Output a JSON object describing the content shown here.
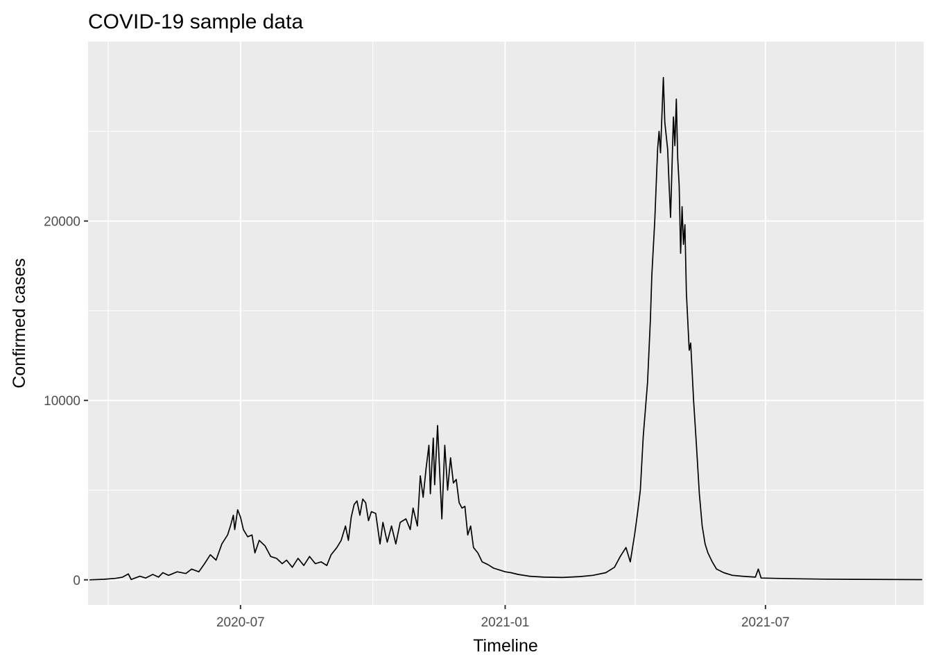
{
  "chart_data": {
    "type": "line",
    "title": "COVID-19 sample data",
    "xlabel": "Timeline",
    "ylabel": "Confirmed cases",
    "x_axis": {
      "type": "date",
      "range": [
        "2020-03-17",
        "2021-10-19"
      ],
      "ticks": [
        "2020-07-01",
        "2021-01-01",
        "2021-07-01"
      ],
      "tick_labels": [
        "2020-07",
        "2021-01",
        "2021-07"
      ]
    },
    "y_axis": {
      "range": [
        -1400,
        30000
      ],
      "ticks": [
        0,
        10000,
        20000
      ],
      "tick_labels": [
        "0",
        "10000",
        "20000"
      ]
    },
    "grid": true,
    "legend": "none",
    "series": [
      {
        "color": "#000000",
        "points": [
          [
            "2020-03-18",
            0
          ],
          [
            "2020-03-28",
            30
          ],
          [
            "2020-04-05",
            80
          ],
          [
            "2020-04-10",
            150
          ],
          [
            "2020-04-14",
            330
          ],
          [
            "2020-04-16",
            20
          ],
          [
            "2020-04-22",
            200
          ],
          [
            "2020-04-26",
            100
          ],
          [
            "2020-05-01",
            300
          ],
          [
            "2020-05-05",
            150
          ],
          [
            "2020-05-08",
            400
          ],
          [
            "2020-05-12",
            250
          ],
          [
            "2020-05-18",
            450
          ],
          [
            "2020-05-24",
            350
          ],
          [
            "2020-05-28",
            600
          ],
          [
            "2020-06-02",
            450
          ],
          [
            "2020-06-06",
            900
          ],
          [
            "2020-06-10",
            1400
          ],
          [
            "2020-06-14",
            1100
          ],
          [
            "2020-06-18",
            2000
          ],
          [
            "2020-06-22",
            2500
          ],
          [
            "2020-06-24",
            3000
          ],
          [
            "2020-06-26",
            3600
          ],
          [
            "2020-06-27",
            2800
          ],
          [
            "2020-06-29",
            3900
          ],
          [
            "2020-07-01",
            3500
          ],
          [
            "2020-07-03",
            2800
          ],
          [
            "2020-07-06",
            2400
          ],
          [
            "2020-07-09",
            2500
          ],
          [
            "2020-07-11",
            1500
          ],
          [
            "2020-07-14",
            2200
          ],
          [
            "2020-07-18",
            1900
          ],
          [
            "2020-07-22",
            1300
          ],
          [
            "2020-07-26",
            1200
          ],
          [
            "2020-07-30",
            900
          ],
          [
            "2020-08-02",
            1100
          ],
          [
            "2020-08-06",
            700
          ],
          [
            "2020-08-10",
            1200
          ],
          [
            "2020-08-14",
            800
          ],
          [
            "2020-08-18",
            1300
          ],
          [
            "2020-08-22",
            900
          ],
          [
            "2020-08-26",
            1000
          ],
          [
            "2020-08-30",
            800
          ],
          [
            "2020-09-02",
            1400
          ],
          [
            "2020-09-06",
            1800
          ],
          [
            "2020-09-09",
            2200
          ],
          [
            "2020-09-12",
            3000
          ],
          [
            "2020-09-14",
            2200
          ],
          [
            "2020-09-16",
            3500
          ],
          [
            "2020-09-18",
            4200
          ],
          [
            "2020-09-20",
            4400
          ],
          [
            "2020-09-22",
            3600
          ],
          [
            "2020-09-24",
            4500
          ],
          [
            "2020-09-26",
            4300
          ],
          [
            "2020-09-28",
            3300
          ],
          [
            "2020-09-30",
            3800
          ],
          [
            "2020-10-03",
            3700
          ],
          [
            "2020-10-06",
            2000
          ],
          [
            "2020-10-08",
            3200
          ],
          [
            "2020-10-11",
            2100
          ],
          [
            "2020-10-14",
            3000
          ],
          [
            "2020-10-17",
            2000
          ],
          [
            "2020-10-20",
            3200
          ],
          [
            "2020-10-24",
            3400
          ],
          [
            "2020-10-27",
            2800
          ],
          [
            "2020-10-29",
            4000
          ],
          [
            "2020-11-01",
            3000
          ],
          [
            "2020-11-03",
            5800
          ],
          [
            "2020-11-05",
            4600
          ],
          [
            "2020-11-07",
            6200
          ],
          [
            "2020-11-09",
            7500
          ],
          [
            "2020-11-10",
            4800
          ],
          [
            "2020-11-12",
            7900
          ],
          [
            "2020-11-13",
            5300
          ],
          [
            "2020-11-15",
            8600
          ],
          [
            "2020-11-16",
            6800
          ],
          [
            "2020-11-18",
            3400
          ],
          [
            "2020-11-20",
            7500
          ],
          [
            "2020-11-22",
            5000
          ],
          [
            "2020-11-24",
            6800
          ],
          [
            "2020-11-26",
            5400
          ],
          [
            "2020-11-28",
            5600
          ],
          [
            "2020-11-30",
            4300
          ],
          [
            "2020-12-02",
            4000
          ],
          [
            "2020-12-04",
            4100
          ],
          [
            "2020-12-06",
            2500
          ],
          [
            "2020-12-08",
            3000
          ],
          [
            "2020-12-10",
            1800
          ],
          [
            "2020-12-13",
            1500
          ],
          [
            "2020-12-16",
            1000
          ],
          [
            "2020-12-20",
            850
          ],
          [
            "2020-12-24",
            650
          ],
          [
            "2020-12-28",
            550
          ],
          [
            "2021-01-01",
            450
          ],
          [
            "2021-01-05",
            400
          ],
          [
            "2021-01-10",
            300
          ],
          [
            "2021-01-18",
            200
          ],
          [
            "2021-01-28",
            150
          ],
          [
            "2021-02-10",
            130
          ],
          [
            "2021-02-22",
            180
          ],
          [
            "2021-03-03",
            250
          ],
          [
            "2021-03-12",
            400
          ],
          [
            "2021-03-18",
            700
          ],
          [
            "2021-03-22",
            1300
          ],
          [
            "2021-03-26",
            1800
          ],
          [
            "2021-03-29",
            1000
          ],
          [
            "2021-04-01",
            2500
          ],
          [
            "2021-04-03",
            3700
          ],
          [
            "2021-04-05",
            5000
          ],
          [
            "2021-04-07",
            8000
          ],
          [
            "2021-04-10",
            11000
          ],
          [
            "2021-04-12",
            14500
          ],
          [
            "2021-04-13",
            17000
          ],
          [
            "2021-04-15",
            20000
          ],
          [
            "2021-04-17",
            24000
          ],
          [
            "2021-04-18",
            25000
          ],
          [
            "2021-04-19",
            23800
          ],
          [
            "2021-04-21",
            28000
          ],
          [
            "2021-04-22",
            25500
          ],
          [
            "2021-04-24",
            24000
          ],
          [
            "2021-04-25",
            22000
          ],
          [
            "2021-04-26",
            20200
          ],
          [
            "2021-04-28",
            25800
          ],
          [
            "2021-04-29",
            24200
          ],
          [
            "2021-04-30",
            26800
          ],
          [
            "2021-05-01",
            23500
          ],
          [
            "2021-05-02",
            22000
          ],
          [
            "2021-05-03",
            18200
          ],
          [
            "2021-05-04",
            20800
          ],
          [
            "2021-05-05",
            18700
          ],
          [
            "2021-05-06",
            19800
          ],
          [
            "2021-05-07",
            16000
          ],
          [
            "2021-05-09",
            12800
          ],
          [
            "2021-05-10",
            13200
          ],
          [
            "2021-05-12",
            10000
          ],
          [
            "2021-05-14",
            7500
          ],
          [
            "2021-05-16",
            4800
          ],
          [
            "2021-05-18",
            3000
          ],
          [
            "2021-05-20",
            2000
          ],
          [
            "2021-05-22",
            1500
          ],
          [
            "2021-05-25",
            1000
          ],
          [
            "2021-05-28",
            600
          ],
          [
            "2021-06-02",
            400
          ],
          [
            "2021-06-08",
            250
          ],
          [
            "2021-06-15",
            200
          ],
          [
            "2021-06-24",
            150
          ],
          [
            "2021-06-26",
            600
          ],
          [
            "2021-06-28",
            100
          ],
          [
            "2021-07-08",
            80
          ],
          [
            "2021-07-20",
            60
          ],
          [
            "2021-08-10",
            40
          ],
          [
            "2021-09-01",
            25
          ],
          [
            "2021-10-18",
            10
          ]
        ]
      }
    ]
  }
}
